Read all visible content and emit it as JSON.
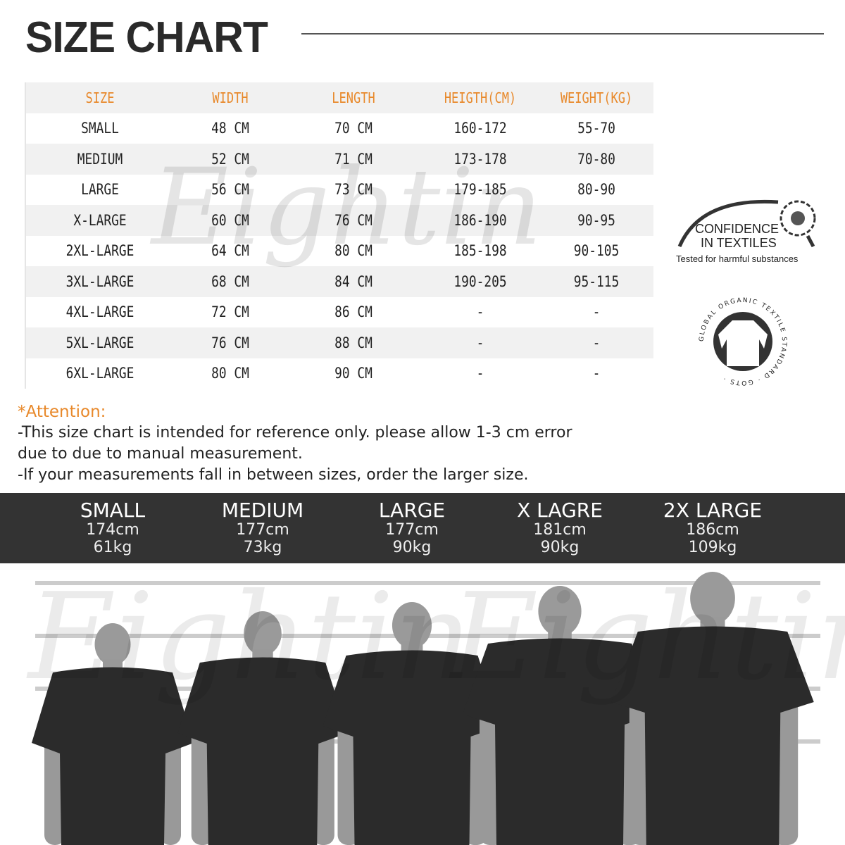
{
  "title": "SIZE CHART",
  "table": {
    "headers": [
      "SIZE",
      "WIDTH",
      "LENGTH",
      "HEIGTH(CM)",
      "WEIGHT(KG)"
    ],
    "rows": [
      [
        "SMALL",
        "48 CM",
        "70 CM",
        "160-172",
        "55-70"
      ],
      [
        "MEDIUM",
        "52 CM",
        "71 CM",
        "173-178",
        "70-80"
      ],
      [
        "LARGE",
        "56 CM",
        "73 CM",
        "179-185",
        "80-90"
      ],
      [
        "X-LARGE",
        "60 CM",
        "76 CM",
        "186-190",
        "90-95"
      ],
      [
        "2XL-LARGE",
        "64 CM",
        "80 CM",
        "185-198",
        "90-105"
      ],
      [
        "3XL-LARGE",
        "68 CM",
        "84 CM",
        "190-205",
        "95-115"
      ],
      [
        "4XL-LARGE",
        "72 CM",
        "86 CM",
        "-",
        "-"
      ],
      [
        "5XL-LARGE",
        "76 CM",
        "88 CM",
        "-",
        "-"
      ],
      [
        "6XL-LARGE",
        "80 CM",
        "90 CM",
        "-",
        "-"
      ]
    ]
  },
  "watermark": "Eightin",
  "certifications": {
    "oeko": {
      "line1": "CONFIDENCE",
      "line2": "IN TEXTILES",
      "line3": "Tested for harmful substances"
    },
    "gots": {
      "ring": "GLOBAL ORGANIC TEXTILE STANDARD · GOTS ·"
    }
  },
  "attention": {
    "heading": "*Attention:",
    "lines": [
      "-This size chart is intended for reference only. please allow 1-3 cm error",
      "due to due to manual measurement.",
      "-If your measurements fall in between sizes, order the larger size."
    ]
  },
  "models": [
    {
      "size": "SMALL",
      "height": "174cm",
      "weight": "61kg"
    },
    {
      "size": "MEDIUM",
      "height": "177cm",
      "weight": "73kg"
    },
    {
      "size": "LARGE",
      "height": "177cm",
      "weight": "90kg"
    },
    {
      "size": "X LAGRE",
      "height": "181cm",
      "weight": "90kg"
    },
    {
      "size": "2X LARGE",
      "height": "186cm",
      "weight": "109kg"
    }
  ],
  "colors": {
    "accent": "#e8892b",
    "band": "#333333",
    "stripe": "#f1f1f1"
  }
}
